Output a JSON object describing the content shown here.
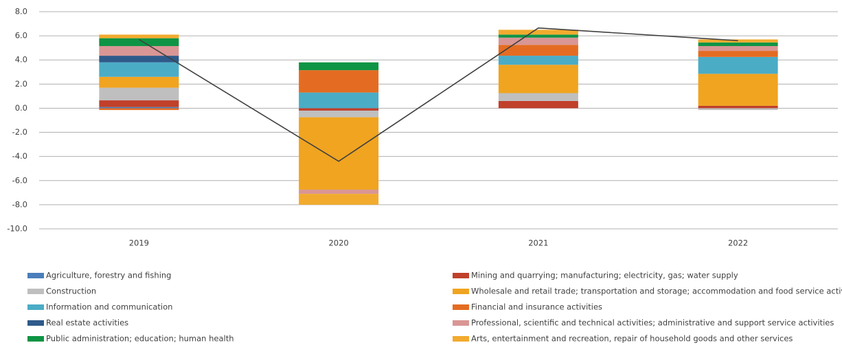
{
  "chart_data": {
    "type": "stacked_bar_line",
    "categories": [
      "2019",
      "2020",
      "2021",
      "2022"
    ],
    "series": [
      {
        "name": "Agriculture, forestry and fishing",
        "color": "#4a7ebb",
        "values": [
          0.1,
          0,
          0,
          0
        ]
      },
      {
        "name": "Mining and quarrying; manufacturing; electricity, gas; water supply",
        "color": "#c0402a",
        "values": [
          0.55,
          -0.2,
          0.6,
          0.2
        ]
      },
      {
        "name": "Construction",
        "color": "#bfbfbf",
        "values": [
          1.05,
          -0.55,
          0.65,
          -0.15
        ]
      },
      {
        "name": "Wholesale and retail trade; transportation and storage; accommodation and food service activities",
        "color": "#f0a420",
        "values": [
          0.9,
          -6.0,
          2.35,
          2.65
        ]
      },
      {
        "name": "Information and communication",
        "color": "#4bacc6",
        "values": [
          1.2,
          1.3,
          0.75,
          1.4
        ]
      },
      {
        "name": "Financial and insurance activities",
        "color": "#e46c22",
        "values": [
          -0.15,
          1.85,
          0.9,
          0.5
        ]
      },
      {
        "name": "Real estate activities",
        "color": "#2e5a8a",
        "values": [
          0.55,
          0,
          0,
          0
        ]
      },
      {
        "name": "Professional, scientific and technical activities; administrative and support service activities",
        "color": "#d99694",
        "values": [
          0.8,
          -0.35,
          0.6,
          0.4
        ]
      },
      {
        "name": "Public administration; education; human health",
        "color": "#0e9444",
        "values": [
          0.65,
          0.65,
          0.25,
          0.3
        ]
      },
      {
        "name": "Arts, entertainment and recreation, repair of household goods and other services",
        "color": "#f2ab2e",
        "values": [
          0.3,
          -0.9,
          0.4,
          0.25
        ]
      }
    ],
    "line": {
      "color": "#404040",
      "values": [
        5.7,
        -4.4,
        6.65,
        5.6
      ]
    },
    "ylim": [
      -10,
      8
    ],
    "yticks": [
      {
        "value": -10,
        "label": "-10.0"
      },
      {
        "value": -8,
        "label": "-8.0"
      },
      {
        "value": -6,
        "label": "-6.0"
      },
      {
        "value": -4,
        "label": "-4.0"
      },
      {
        "value": -2,
        "label": "-2.0"
      },
      {
        "value": 0,
        "label": "0.0"
      },
      {
        "value": 2,
        "label": "2.0"
      },
      {
        "value": 4,
        "label": "4.0"
      },
      {
        "value": 6,
        "label": "6.0"
      },
      {
        "value": 8,
        "label": "8.0"
      }
    ],
    "grid": true
  }
}
